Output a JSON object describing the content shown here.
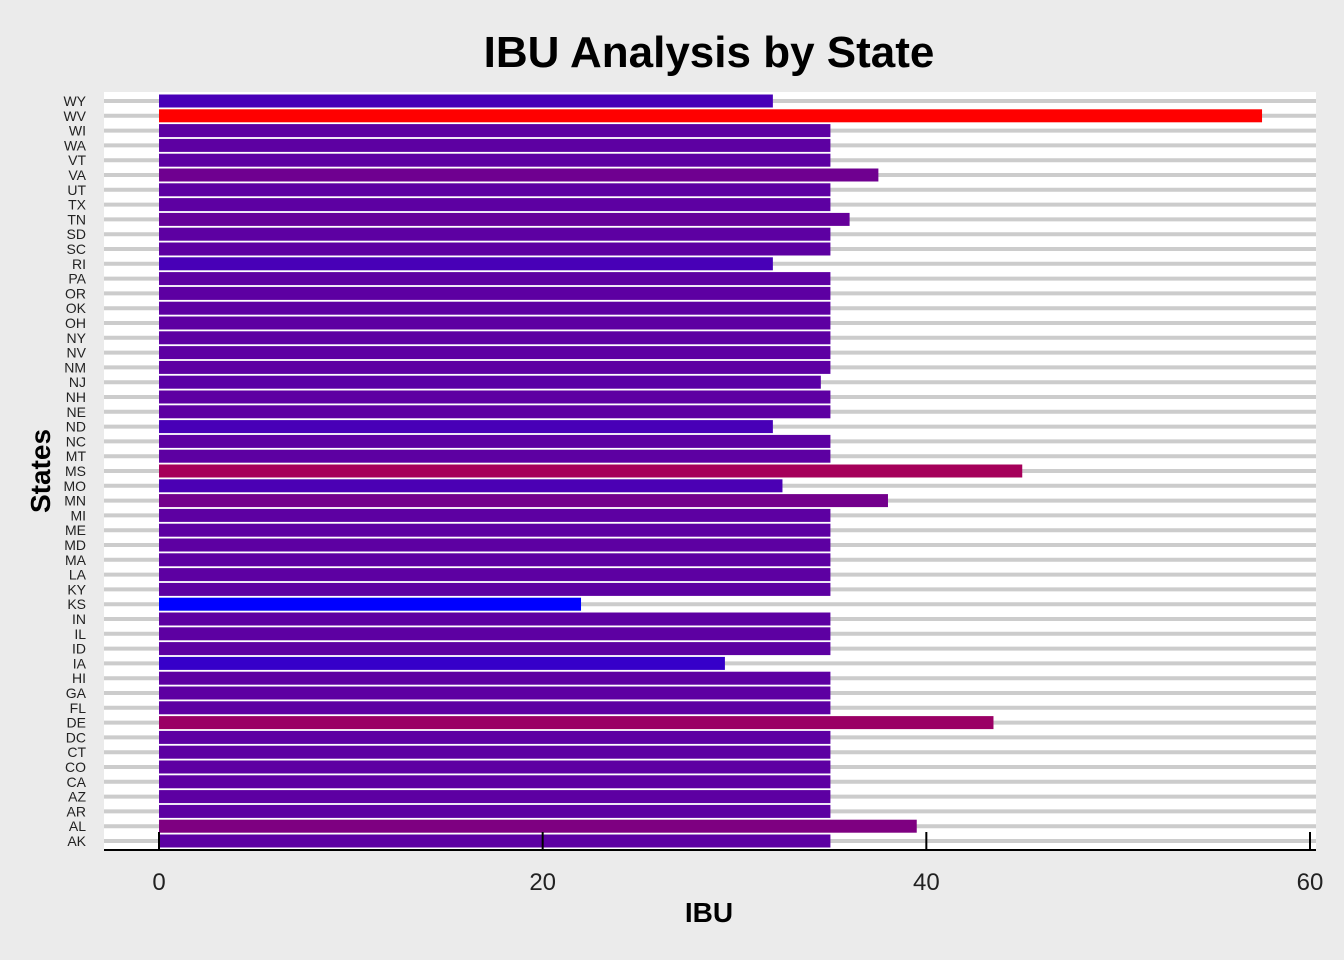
{
  "chart_data": {
    "type": "bar",
    "orientation": "horizontal",
    "title": "IBU Analysis by State",
    "xlabel": "IBU",
    "ylabel": "States",
    "xlim": [
      0,
      60
    ],
    "x_ticks": [
      0,
      20,
      40,
      60
    ],
    "grid": true,
    "legend": "none",
    "color_scale": {
      "low": "#0000ff",
      "high": "#ff0000"
    },
    "categories": [
      "AK",
      "AL",
      "AR",
      "AZ",
      "CA",
      "CO",
      "CT",
      "DC",
      "DE",
      "FL",
      "GA",
      "HI",
      "IA",
      "ID",
      "IL",
      "IN",
      "KS",
      "KY",
      "LA",
      "MA",
      "MD",
      "ME",
      "MI",
      "MN",
      "MO",
      "MS",
      "MT",
      "NC",
      "ND",
      "NE",
      "NH",
      "NJ",
      "NM",
      "NV",
      "NY",
      "OH",
      "OK",
      "OR",
      "PA",
      "RI",
      "SC",
      "SD",
      "TN",
      "TX",
      "UT",
      "VA",
      "VT",
      "WA",
      "WI",
      "WV",
      "WY"
    ],
    "values": [
      35,
      39.5,
      35,
      35,
      35,
      35,
      35,
      35,
      43.5,
      35,
      35,
      35,
      29.5,
      35,
      35,
      35,
      22,
      35,
      35,
      35,
      35,
      35,
      35,
      38,
      32.5,
      45,
      35,
      35,
      32,
      35,
      35,
      34.5,
      35,
      35,
      35,
      35,
      35,
      35,
      35,
      32,
      35,
      35,
      36,
      35,
      35,
      37.5,
      35,
      35,
      35,
      57.5,
      32
    ]
  }
}
